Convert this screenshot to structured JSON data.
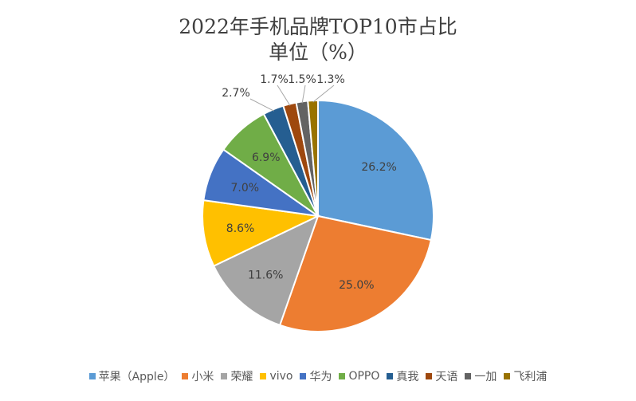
{
  "chart_data": {
    "type": "pie",
    "title": "2022年手机品牌TOP10市占比",
    "subtitle": "单位（%）",
    "start_angle": "top, clockwise",
    "legend_position": "bottom",
    "categories": [
      "苹果（Apple）",
      "小米",
      "荣耀",
      "vivo",
      "华为",
      "OPPO",
      "真我",
      "天语",
      "一加",
      "飞利浦"
    ],
    "values": [
      26.2,
      25.0,
      11.6,
      8.6,
      7.0,
      6.9,
      2.7,
      1.7,
      1.5,
      1.3
    ],
    "labels": [
      "26.2%",
      "25.0%",
      "11.6%",
      "8.6%",
      "7.0%",
      "6.9%",
      "2.7%",
      "1.7%",
      "1.5%",
      "1.3%"
    ],
    "colors": [
      "#5B9BD5",
      "#ED7D31",
      "#A5A5A5",
      "#FFC000",
      "#4472C4",
      "#70AD47",
      "#255E91",
      "#9E480E",
      "#636363",
      "#997300"
    ]
  }
}
